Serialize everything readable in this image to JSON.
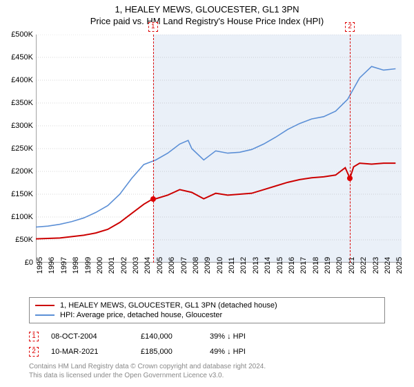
{
  "title": "1, HEALEY MEWS, GLOUCESTER, GL1 3PN",
  "subtitle": "Price paid vs. HM Land Registry's House Price Index (HPI)",
  "chart": {
    "type": "line",
    "background_color": "#ffffff",
    "shade_color": "#eaf0f8",
    "grid_color": "#999999",
    "x_domain": [
      1995,
      2025.5
    ],
    "y_domain": [
      0,
      500000
    ],
    "x_ticks": [
      1995,
      1996,
      1997,
      1998,
      1999,
      2000,
      2001,
      2002,
      2003,
      2004,
      2005,
      2006,
      2007,
      2008,
      2009,
      2010,
      2011,
      2012,
      2013,
      2014,
      2015,
      2016,
      2017,
      2018,
      2019,
      2020,
      2021,
      2022,
      2023,
      2024,
      2025
    ],
    "x_tick_labels": [
      "1995",
      "1996",
      "1997",
      "1998",
      "1999",
      "2000",
      "2001",
      "2002",
      "2003",
      "2004",
      "2005",
      "2006",
      "2007",
      "2008",
      "2009",
      "2010",
      "2011",
      "2012",
      "2013",
      "2014",
      "2015",
      "2016",
      "2017",
      "2018",
      "2019",
      "2020",
      "2021",
      "2022",
      "2023",
      "2024",
      "2025"
    ],
    "y_ticks": [
      0,
      50000,
      100000,
      150000,
      200000,
      250000,
      300000,
      350000,
      400000,
      450000,
      500000
    ],
    "y_tick_labels": [
      "£0",
      "£50K",
      "£100K",
      "£150K",
      "£200K",
      "£250K",
      "£300K",
      "£350K",
      "£400K",
      "£450K",
      "£500K"
    ],
    "tick_fontsize": 11,
    "shade_start_x": 2004.77,
    "series": [
      {
        "name": "property",
        "label": "1, HEALEY MEWS, GLOUCESTER, GL1 3PN (detached house)",
        "color": "#cc0000",
        "line_width": 2,
        "points": [
          [
            1995,
            52000
          ],
          [
            1996,
            53000
          ],
          [
            1997,
            54000
          ],
          [
            1998,
            57000
          ],
          [
            1999,
            60000
          ],
          [
            2000,
            65000
          ],
          [
            2001,
            73000
          ],
          [
            2002,
            88000
          ],
          [
            2003,
            108000
          ],
          [
            2004,
            128000
          ],
          [
            2004.77,
            140000
          ],
          [
            2005,
            140000
          ],
          [
            2006,
            148000
          ],
          [
            2007,
            160000
          ],
          [
            2008,
            154000
          ],
          [
            2009,
            140000
          ],
          [
            2010,
            152000
          ],
          [
            2011,
            148000
          ],
          [
            2012,
            150000
          ],
          [
            2013,
            152000
          ],
          [
            2014,
            160000
          ],
          [
            2015,
            168000
          ],
          [
            2016,
            176000
          ],
          [
            2017,
            182000
          ],
          [
            2018,
            186000
          ],
          [
            2019,
            188000
          ],
          [
            2020,
            192000
          ],
          [
            2020.8,
            208000
          ],
          [
            2021.19,
            185000
          ],
          [
            2021.5,
            210000
          ],
          [
            2022,
            218000
          ],
          [
            2023,
            216000
          ],
          [
            2024,
            218000
          ],
          [
            2025,
            218000
          ]
        ]
      },
      {
        "name": "hpi",
        "label": "HPI: Average price, detached house, Gloucester",
        "color": "#5b8fd6",
        "line_width": 1.6,
        "points": [
          [
            1995,
            78000
          ],
          [
            1996,
            80000
          ],
          [
            1997,
            84000
          ],
          [
            1998,
            90000
          ],
          [
            1999,
            98000
          ],
          [
            2000,
            110000
          ],
          [
            2001,
            125000
          ],
          [
            2002,
            150000
          ],
          [
            2003,
            185000
          ],
          [
            2004,
            215000
          ],
          [
            2005,
            225000
          ],
          [
            2006,
            240000
          ],
          [
            2007,
            260000
          ],
          [
            2007.7,
            268000
          ],
          [
            2008,
            250000
          ],
          [
            2009,
            225000
          ],
          [
            2010,
            245000
          ],
          [
            2011,
            240000
          ],
          [
            2012,
            242000
          ],
          [
            2013,
            248000
          ],
          [
            2014,
            260000
          ],
          [
            2015,
            275000
          ],
          [
            2016,
            292000
          ],
          [
            2017,
            305000
          ],
          [
            2018,
            315000
          ],
          [
            2019,
            320000
          ],
          [
            2020,
            332000
          ],
          [
            2021,
            358000
          ],
          [
            2022,
            405000
          ],
          [
            2023,
            430000
          ],
          [
            2024,
            422000
          ],
          [
            2025,
            425000
          ]
        ]
      }
    ],
    "markers": [
      {
        "id": "1",
        "x": 2004.77,
        "price": 140000
      },
      {
        "id": "2",
        "x": 2021.19,
        "price": 185000
      }
    ]
  },
  "legend": {
    "items": [
      {
        "color": "#cc0000",
        "label": "1, HEALEY MEWS, GLOUCESTER, GL1 3PN (detached house)"
      },
      {
        "color": "#5b8fd6",
        "label": "HPI: Average price, detached house, Gloucester"
      }
    ]
  },
  "events": [
    {
      "id": "1",
      "date": "08-OCT-2004",
      "price": "£140,000",
      "delta": "39% ↓ HPI"
    },
    {
      "id": "2",
      "date": "10-MAR-2021",
      "price": "£185,000",
      "delta": "49% ↓ HPI"
    }
  ],
  "footer": {
    "line1": "Contains HM Land Registry data © Crown copyright and database right 2024.",
    "line2": "This data is licensed under the Open Government Licence v3.0."
  }
}
